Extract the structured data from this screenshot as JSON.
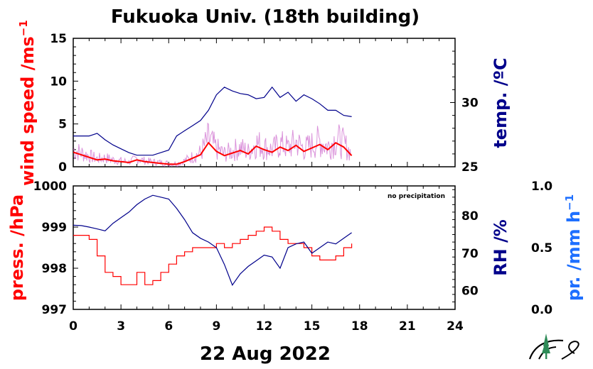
{
  "title": "Fukuoka Univ. (18th building)",
  "date_label": "22 Aug 2022",
  "note": "no precipitation",
  "colors": {
    "wind": "#ff0000",
    "wind_raw": "#cc66cc",
    "temp": "#00008b",
    "press": "#ff0000",
    "rh": "#00008b",
    "precip": "#1e6fff",
    "logo_green": "#2e8b57"
  },
  "chart_data": [
    {
      "type": "line",
      "panel": "upper",
      "x_ticks": [
        0,
        3,
        6,
        9,
        12,
        15,
        18,
        21,
        24
      ],
      "xlim": [
        0,
        24
      ],
      "left_axis": {
        "label": "wind speed /ms",
        "label_sup": "−1",
        "ylim": [
          0,
          15
        ],
        "ticks": [
          0,
          5,
          10,
          15
        ]
      },
      "right_axis": {
        "label": "temp. /ºC",
        "ylim": [
          25,
          35
        ],
        "ticks": [
          25,
          30
        ]
      },
      "series": [
        {
          "axis": "left",
          "x": [
            0,
            0.5,
            1,
            1.5,
            2,
            2.5,
            3,
            3.5,
            4,
            4.5,
            5,
            5.5,
            6,
            6.5,
            7,
            7.5,
            8,
            8.5,
            9,
            9.5,
            10,
            10.5,
            11,
            11.5,
            12,
            12.5,
            13,
            13.5,
            14,
            14.5,
            15,
            15.5,
            16,
            16.5,
            17,
            17.5
          ],
          "y": [
            1.7,
            1.4,
            1.1,
            0.8,
            0.9,
            0.7,
            0.6,
            0.5,
            0.8,
            0.6,
            0.5,
            0.4,
            0.3,
            0.3,
            0.6,
            1.0,
            1.4,
            2.8,
            1.8,
            1.3,
            1.6,
            1.9,
            1.5,
            2.4,
            2.0,
            1.7,
            2.3,
            1.9,
            2.5,
            1.8,
            2.2,
            2.6,
            2.0,
            2.8,
            2.3,
            1.3
          ]
        },
        {
          "axis": "right",
          "x": [
            0,
            0.5,
            1,
            1.5,
            2,
            2.5,
            3,
            3.5,
            4,
            4.5,
            5,
            5.5,
            6,
            6.5,
            7,
            7.5,
            8,
            8.5,
            9,
            9.5,
            10,
            10.5,
            11,
            11.5,
            12,
            12.5,
            13,
            13.5,
            14,
            14.5,
            15,
            15.5,
            16,
            16.5,
            17,
            17.5
          ],
          "y": [
            27.4,
            27.4,
            27.4,
            27.6,
            27.1,
            26.7,
            26.4,
            26.1,
            25.9,
            25.9,
            25.9,
            26.1,
            26.3,
            27.4,
            27.8,
            28.2,
            28.6,
            29.4,
            30.6,
            31.2,
            30.9,
            30.7,
            30.6,
            30.3,
            30.4,
            31.2,
            30.4,
            30.8,
            30.1,
            30.6,
            30.3,
            29.9,
            29.4,
            29.4,
            29.0,
            28.9
          ]
        }
      ]
    },
    {
      "type": "line",
      "panel": "lower",
      "x_ticks": [
        0,
        3,
        6,
        9,
        12,
        15,
        18,
        21,
        24
      ],
      "xlim": [
        0,
        24
      ],
      "left_axis": {
        "label": "press. /hPa",
        "ylim": [
          997,
          1000
        ],
        "ticks": [
          997,
          998,
          999,
          1000
        ]
      },
      "right_axis": {
        "label": "RH /%",
        "ylim": [
          55,
          88
        ],
        "ticks": [
          60,
          70,
          80
        ]
      },
      "precip_axis": {
        "label": "pr. /mm h",
        "label_sup": "−1",
        "ylim": [
          0.0,
          1.0
        ],
        "ticks": [
          "0.0",
          "0.5",
          "1.0"
        ]
      },
      "series": [
        {
          "axis": "left",
          "x": [
            0,
            0.5,
            1,
            1.5,
            2,
            2.5,
            3,
            3.5,
            4,
            4.5,
            5,
            5.5,
            6,
            6.5,
            7,
            7.5,
            8,
            8.5,
            9,
            9.5,
            10,
            10.5,
            11,
            11.5,
            12,
            12.5,
            13,
            13.5,
            14,
            14.5,
            15,
            15.5,
            16,
            16.5,
            17,
            17.5
          ],
          "y": [
            998.8,
            998.8,
            998.7,
            998.3,
            997.9,
            997.8,
            997.6,
            997.6,
            997.9,
            997.6,
            997.7,
            997.9,
            998.1,
            998.3,
            998.4,
            998.5,
            998.5,
            998.5,
            998.6,
            998.5,
            998.6,
            998.7,
            998.8,
            998.9,
            999.0,
            998.9,
            998.7,
            998.6,
            998.6,
            998.5,
            998.3,
            998.2,
            998.2,
            998.3,
            998.5,
            998.6
          ]
        },
        {
          "axis": "right",
          "x": [
            0,
            0.5,
            1,
            1.5,
            2,
            2.5,
            3,
            3.5,
            4,
            4.5,
            5,
            5.5,
            6,
            6.5,
            7,
            7.5,
            8,
            8.5,
            9,
            9.5,
            10,
            10.5,
            11,
            11.5,
            12,
            12.5,
            13,
            13.5,
            14,
            14.5,
            15,
            15.5,
            16,
            16.5,
            17,
            17.5
          ],
          "y": [
            77.5,
            77.4,
            77.0,
            76.5,
            76.0,
            78.0,
            79.5,
            81.0,
            83.0,
            84.5,
            85.5,
            85.0,
            84.5,
            82.0,
            79.0,
            75.5,
            74.0,
            73.0,
            71.5,
            67.0,
            61.5,
            64.5,
            66.5,
            68.0,
            69.5,
            69.0,
            66.0,
            71.5,
            72.5,
            73.0,
            70.0,
            71.5,
            73.0,
            72.5,
            74.0,
            75.5
          ]
        }
      ]
    }
  ]
}
